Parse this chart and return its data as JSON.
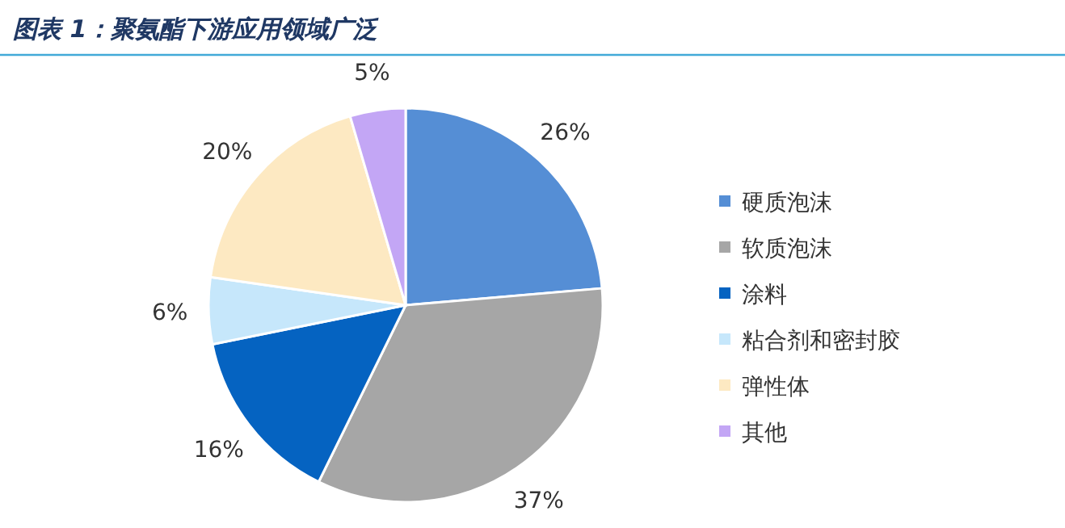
{
  "chart_data": {
    "type": "pie",
    "title": "图表 1：聚氨酯下游应用领域广泛",
    "categories": [
      "硬质泡沫",
      "软质泡沫",
      "涂料",
      "粘合剂和密封胶",
      "弹性体",
      "其他"
    ],
    "values": [
      26,
      37,
      16,
      6,
      20,
      5
    ],
    "colors": [
      "#558ed5",
      "#a6a6a6",
      "#0563c1",
      "#c6e7fb",
      "#fde9c2",
      "#c3a6f5"
    ],
    "value_labels": [
      "26%",
      "37%",
      "16%",
      "6%",
      "20%",
      "5%"
    ],
    "legend": "right"
  }
}
